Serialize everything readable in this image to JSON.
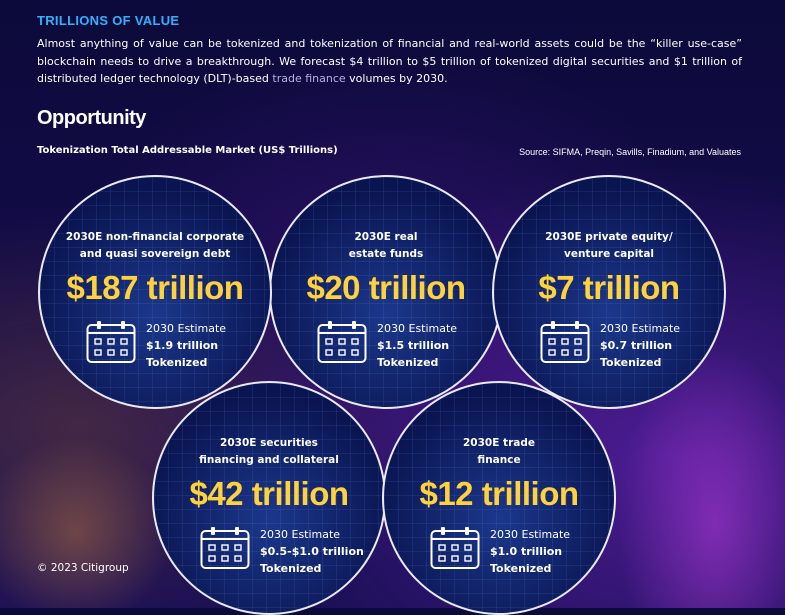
{
  "header": {
    "title": "TRILLIONS OF VALUE",
    "intro_part1": "Almost anything of value can be tokenized and tokenization of financial and real-world assets could be the “killer use-case” blockchain needs to drive a breakthrough. We forecast $4 trillion to $5 trillion of tokenized digital securities and $1 trillion of distributed ledger technology (DLT)-based ",
    "intro_link": "trade finance",
    "intro_part2": " volumes by 2030."
  },
  "section": {
    "title": "Opportunity",
    "subtitle": "Tokenization Total Addressable Market (US$ Trillions)",
    "source": "Source: SIFMA, Preqin, Savills, Finadium, and Valuates"
  },
  "bubbles": [
    {
      "line1": "2030E non-financial corporate",
      "line2": "and quasi sovereign debt",
      "value": "$187 trillion",
      "est_label": "2030 Estimate",
      "est_value": "$1.9 trillion",
      "est_suffix": "Tokenized"
    },
    {
      "line1": "2030E real",
      "line2": "estate funds",
      "value": "$20 trillion",
      "est_label": "2030 Estimate",
      "est_value": "$1.5 trillion",
      "est_suffix": "Tokenized"
    },
    {
      "line1": "2030E private equity/",
      "line2": "venture capital",
      "value": "$7 trillion",
      "est_label": "2030 Estimate",
      "est_value": "$0.7 trillion",
      "est_suffix": "Tokenized"
    },
    {
      "line1": "2030E securities",
      "line2": "financing and collateral",
      "value": "$42 trillion",
      "est_label": "2030 Estimate",
      "est_value": "$0.5-$1.0 trillion",
      "est_suffix": "Tokenized"
    },
    {
      "line1": "2030E trade",
      "line2": "finance",
      "value": "$12 trillion",
      "est_label": "2030 Estimate",
      "est_value": "$1.0 trillion",
      "est_suffix": "Tokenized"
    }
  ],
  "footer": {
    "copyright": "© 2023 Citigroup"
  },
  "colors": {
    "heading": "#2fb3ff",
    "value": "#ffd23c",
    "bubble_border": "#e9e9f7"
  },
  "icons": {
    "estimate": "calendar-icon"
  }
}
